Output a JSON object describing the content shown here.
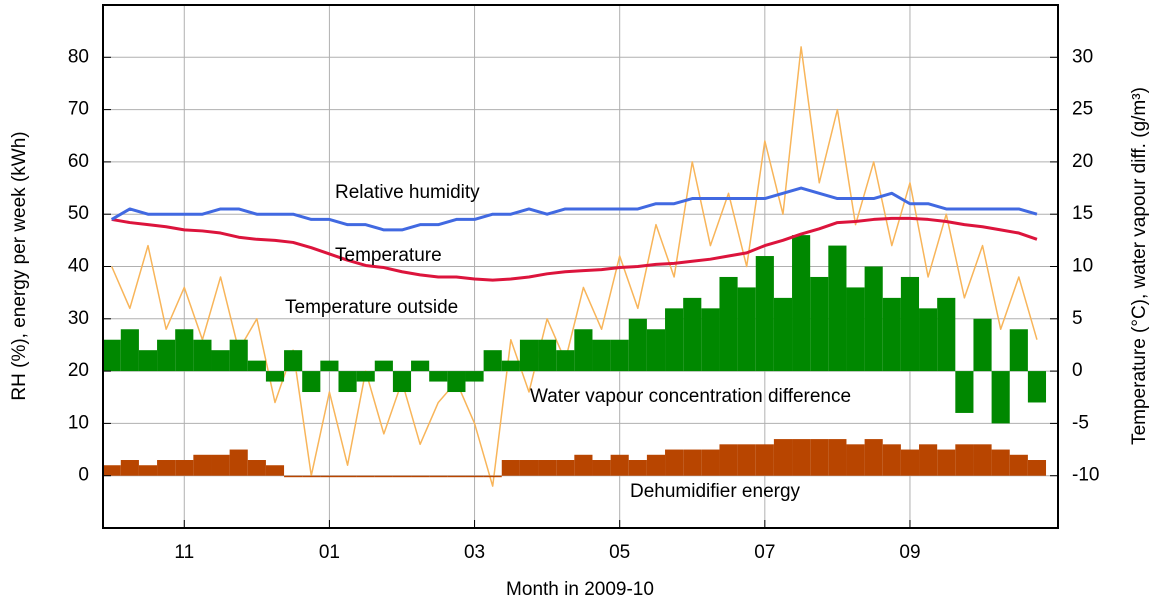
{
  "chart_data": {
    "type": "line",
    "xlabel": "Month in 2009-10",
    "ylabel": "RH (%), energy per week (kWh)",
    "y2label": "Temperature (°C), water vapour diff. (g/m³)",
    "xlim": [
      9.88,
      23.04
    ],
    "xticks": [
      {
        "value": 11,
        "label": "11"
      },
      {
        "value": 13,
        "label": "01"
      },
      {
        "value": 15,
        "label": "03"
      },
      {
        "value": 17,
        "label": "05"
      },
      {
        "value": 19,
        "label": "07"
      },
      {
        "value": 21,
        "label": "09"
      }
    ],
    "ylim": [
      -10,
      90
    ],
    "yticks": [
      0,
      10,
      20,
      30,
      40,
      50,
      60,
      70,
      80
    ],
    "y2lim": [
      -15,
      35
    ],
    "y2ticks": [
      -10,
      -5,
      0,
      5,
      10,
      15,
      20,
      25,
      30
    ],
    "grid": true,
    "x": [
      10,
      10.25,
      10.5,
      10.75,
      11,
      11.25,
      11.5,
      11.75,
      12,
      12.25,
      12.5,
      12.75,
      13,
      13.25,
      13.5,
      13.75,
      14,
      14.25,
      14.5,
      14.75,
      15,
      15.25,
      15.5,
      15.75,
      16,
      16.25,
      16.5,
      16.75,
      17,
      17.25,
      17.5,
      17.75,
      18,
      18.25,
      18.5,
      18.75,
      19,
      19.25,
      19.5,
      19.75,
      20,
      20.25,
      20.5,
      20.75,
      21,
      21.25,
      21.5,
      21.75,
      22,
      22.25,
      22.5,
      22.75
    ],
    "series": [
      {
        "name": "Temperature outside",
        "color": "#f8b55a",
        "mark": "line",
        "axis": "y2",
        "values": [
          10,
          6,
          12,
          4,
          8,
          3,
          9,
          2,
          5,
          -3,
          2,
          -10,
          -2,
          -9,
          0,
          -6,
          -1,
          -7,
          -3,
          -1,
          -5,
          -11,
          3,
          -2,
          5,
          1,
          8,
          4,
          11,
          6,
          14,
          9,
          20,
          12,
          17,
          10,
          22,
          15,
          31,
          18,
          25,
          14,
          20,
          12,
          18,
          9,
          15,
          7,
          12,
          4,
          9,
          3
        ]
      },
      {
        "name": "Water vapour concentration difference",
        "color": "#008800",
        "mark": "bar",
        "axis": "y2",
        "values": [
          3,
          4,
          2,
          3,
          4,
          3,
          2,
          3,
          1,
          -1,
          2,
          -2,
          1,
          -2,
          -1,
          1,
          -2,
          1,
          -1,
          -2,
          -1,
          2,
          1,
          3,
          3,
          2,
          4,
          3,
          3,
          5,
          4,
          6,
          7,
          6,
          9,
          8,
          11,
          7,
          13,
          9,
          12,
          8,
          10,
          7,
          9,
          6,
          7,
          -4,
          5,
          -5,
          4,
          -3
        ]
      },
      {
        "name": "Dehumidifier energy",
        "color": "#b84500",
        "mark": "bar",
        "values": [
          2,
          3,
          2,
          3,
          3,
          4,
          4,
          5,
          3,
          2,
          0,
          0,
          0,
          0,
          0,
          0,
          0,
          0,
          0,
          0,
          0,
          0,
          3,
          3,
          3,
          3,
          4,
          3,
          4,
          3,
          4,
          5,
          5,
          5,
          6,
          6,
          6,
          7,
          7,
          7,
          7,
          6,
          7,
          6,
          5,
          6,
          5,
          6,
          6,
          5,
          4,
          3
        ]
      },
      {
        "name": "Temperature",
        "color": "#dc143c",
        "mark": "line",
        "axis": "y2",
        "values": [
          14.5,
          14.2,
          14.0,
          13.8,
          13.5,
          13.4,
          13.2,
          12.8,
          12.6,
          12.5,
          12.3,
          11.8,
          11.2,
          10.6,
          10.1,
          9.9,
          9.5,
          9.2,
          9.0,
          9.0,
          8.8,
          8.7,
          8.8,
          9.0,
          9.3,
          9.5,
          9.6,
          9.7,
          9.9,
          10.0,
          10.2,
          10.3,
          10.5,
          10.7,
          11.0,
          11.3,
          12.0,
          12.5,
          13.1,
          13.6,
          14.2,
          14.3,
          14.5,
          14.6,
          14.6,
          14.5,
          14.3,
          14.0,
          13.8,
          13.5,
          13.2,
          12.6
        ]
      },
      {
        "name": "Relative humidity",
        "color": "#4169e1",
        "mark": "line",
        "values": [
          49,
          51,
          50,
          50,
          50,
          50,
          51,
          51,
          50,
          50,
          50,
          49,
          49,
          48,
          48,
          47,
          47,
          48,
          48,
          49,
          49,
          50,
          50,
          51,
          50,
          51,
          51,
          51,
          51,
          51,
          52,
          52,
          53,
          53,
          53,
          53,
          53,
          54,
          55,
          54,
          53,
          53,
          53,
          54,
          52,
          52,
          51,
          51,
          51,
          51,
          51,
          50
        ]
      }
    ]
  }
}
